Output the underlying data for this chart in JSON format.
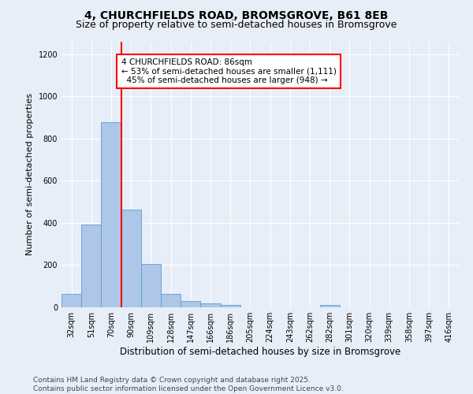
{
  "title1": "4, CHURCHFIELDS ROAD, BROMSGROVE, B61 8EB",
  "title2": "Size of property relative to semi-detached houses in Bromsgrove",
  "xlabel": "Distribution of semi-detached houses by size in Bromsgrove",
  "ylabel": "Number of semi-detached properties",
  "footer": "Contains HM Land Registry data © Crown copyright and database right 2025.\nContains public sector information licensed under the Open Government Licence v3.0.",
  "categories": [
    "32sqm",
    "51sqm",
    "70sqm",
    "90sqm",
    "109sqm",
    "128sqm",
    "147sqm",
    "166sqm",
    "186sqm",
    "205sqm",
    "224sqm",
    "243sqm",
    "262sqm",
    "282sqm",
    "301sqm",
    "320sqm",
    "339sqm",
    "358sqm",
    "397sqm",
    "416sqm"
  ],
  "values": [
    63,
    393,
    878,
    462,
    205,
    63,
    30,
    20,
    12,
    0,
    0,
    0,
    0,
    10,
    0,
    0,
    0,
    0,
    0,
    0
  ],
  "bar_color": "#aec6e8",
  "bar_edge_color": "#5a9fd4",
  "vline_x_index": 2.5,
  "vline_color": "red",
  "annotation_text": "4 CHURCHFIELDS ROAD: 86sqm\n← 53% of semi-detached houses are smaller (1,111)\n  45% of semi-detached houses are larger (948) →",
  "annotation_box_color": "white",
  "annotation_box_edge_color": "red",
  "ylim": [
    0,
    1260
  ],
  "yticks": [
    0,
    200,
    400,
    600,
    800,
    1000,
    1200
  ],
  "background_color": "#e8eef8",
  "grid_color": "white",
  "title_fontsize": 10,
  "subtitle_fontsize": 9,
  "annotation_fontsize": 7.5,
  "footer_fontsize": 6.5,
  "ylabel_fontsize": 8,
  "xlabel_fontsize": 8.5,
  "tick_fontsize": 7
}
